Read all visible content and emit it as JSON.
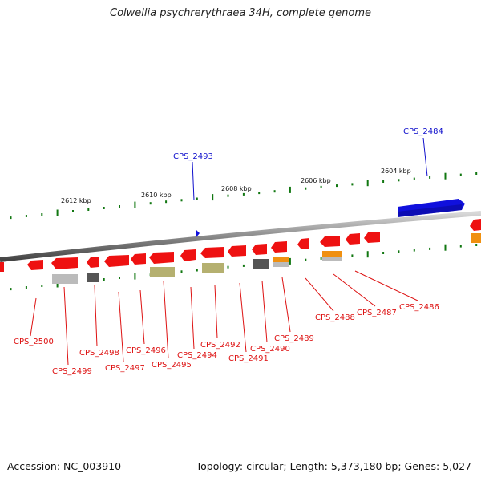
{
  "title": "Colwellia psychrerythraea 34H, complete genome",
  "footer": {
    "accession": "Accession: NC_003910",
    "summary": "Topology: circular; Length: 5,373,180 bp; Genes: 5,027"
  },
  "scale_labels": [
    "2612 kbp",
    "2610 kbp",
    "2608 kbp",
    "2606 kbp",
    "2604 kbp"
  ],
  "colors": {
    "backbone": "#888888",
    "forward_gene": "#1010dd",
    "reverse_gene": "#ee1111",
    "orange_gene": "#f09010",
    "dark_gray_gene": "#555555",
    "light_gray_gene": "#bbbbbb",
    "khaki_gene": "#b5b070",
    "tick": "#117711"
  },
  "top_labels": [
    {
      "id": "CPS_2493",
      "color": "#1010cc"
    },
    {
      "id": "CPS_2484",
      "color": "#1010cc"
    }
  ],
  "bottom_labels": [
    {
      "id": "CPS_2500"
    },
    {
      "id": "CPS_2499"
    },
    {
      "id": "CPS_2498"
    },
    {
      "id": "CPS_2497"
    },
    {
      "id": "CPS_2496"
    },
    {
      "id": "CPS_2495"
    },
    {
      "id": "CPS_2494"
    },
    {
      "id": "CPS_2492"
    },
    {
      "id": "CPS_2491"
    },
    {
      "id": "CPS_2490"
    },
    {
      "id": "CPS_2489"
    },
    {
      "id": "CPS_2488"
    },
    {
      "id": "CPS_2487"
    },
    {
      "id": "CPS_2486"
    }
  ]
}
